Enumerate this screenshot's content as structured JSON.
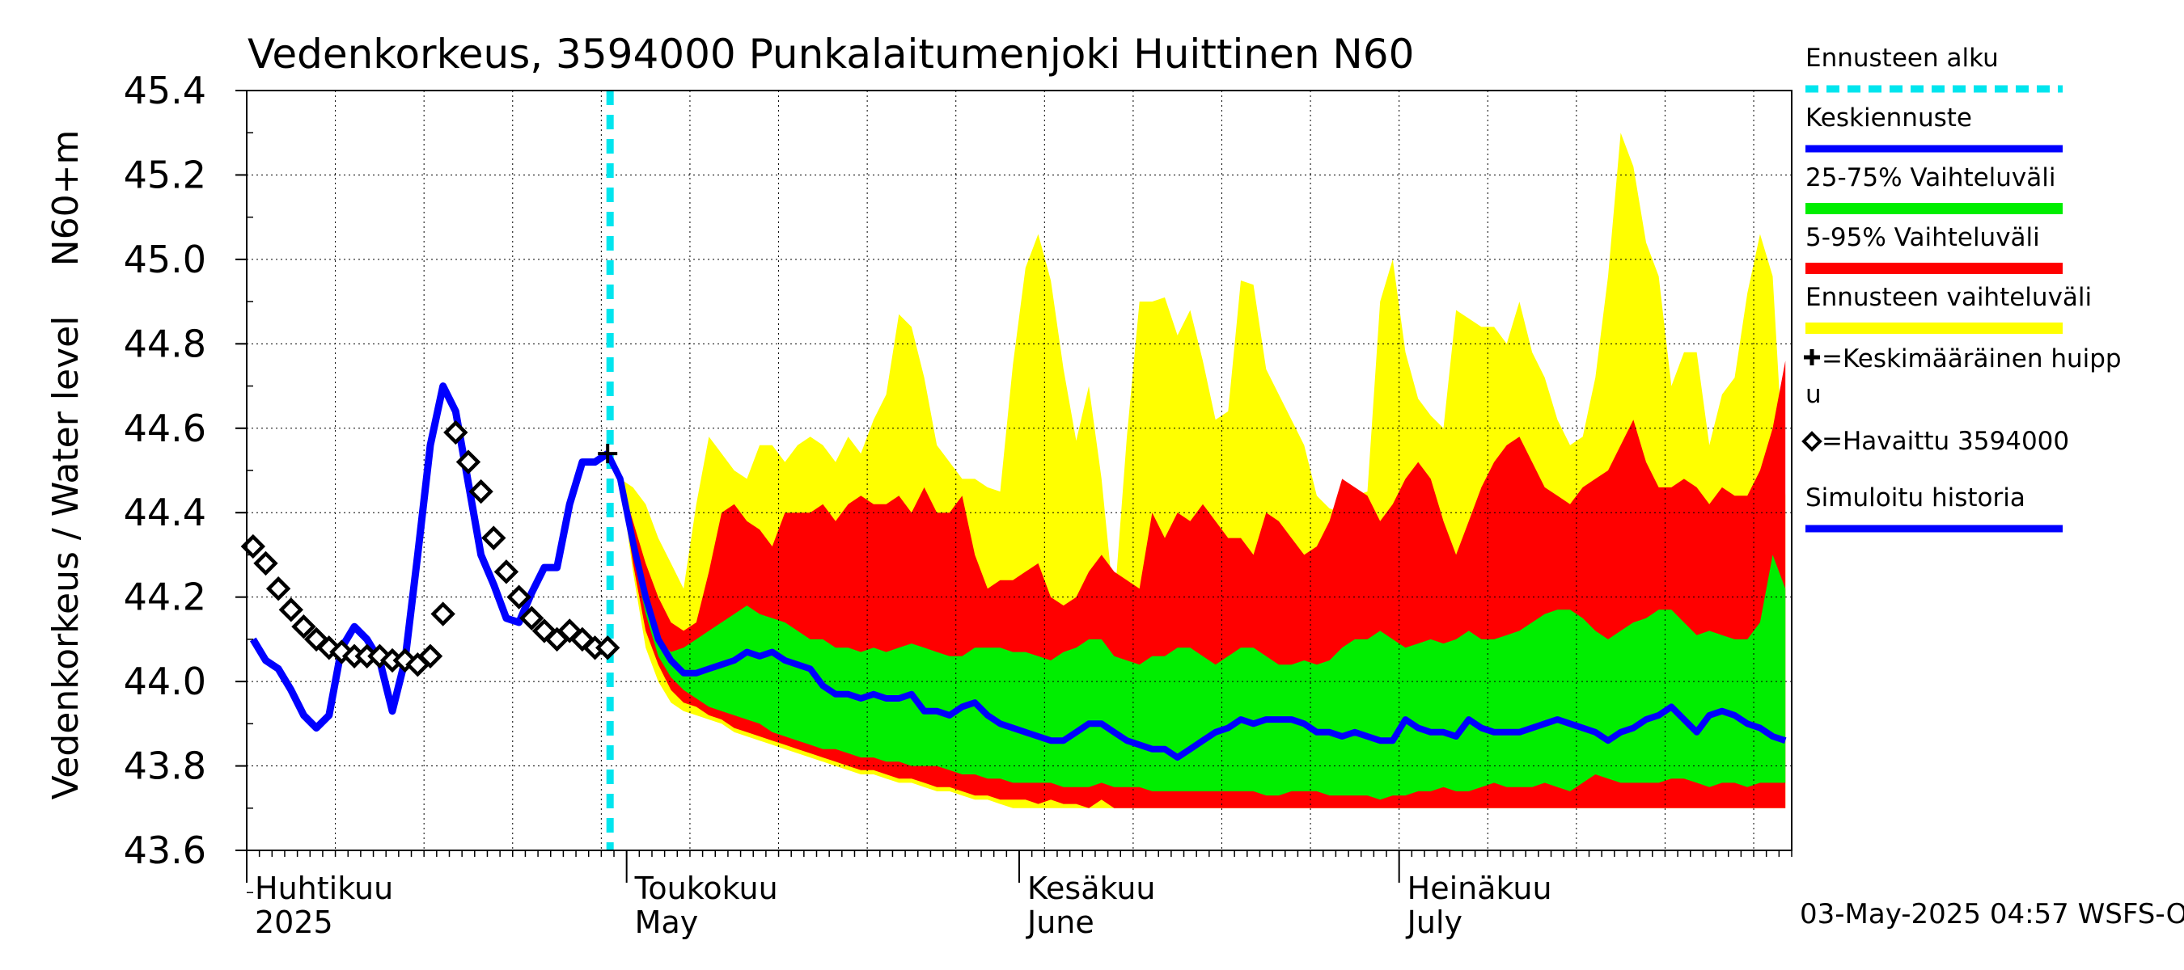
{
  "chart_data": {
    "type": "area",
    "title": "Vedenkorkeus, 3594000 Punkalaitumenjoki Huittinen N60",
    "ylabel_top": "N60+m",
    "ylabel": "Vedenkorkeus / Water level",
    "ylim": [
      43.6,
      45.4
    ],
    "yticks": [
      "43.6",
      "43.8",
      "44.0",
      "44.2",
      "44.4",
      "44.6",
      "44.8",
      "45.0",
      "45.2",
      "45.4"
    ],
    "x_range_days": [
      "2025-04-01",
      "2025-07-31"
    ],
    "grid": true,
    "months": [
      {
        "fi": "Huhtikuu",
        "year": "2025",
        "en": "",
        "start": "2025-04-01"
      },
      {
        "fi": "Toukokuu",
        "year": "",
        "en": "May",
        "start": "2025-05-01"
      },
      {
        "fi": "Kesäkuu",
        "year": "",
        "en": "June",
        "start": "2025-06-01"
      },
      {
        "fi": "Heinäkuu",
        "year": "",
        "en": "July",
        "start": "2025-07-01"
      }
    ],
    "forecast_start": "2025-04-29",
    "mean_peak": {
      "date": "2025-04-29",
      "value": 44.54
    },
    "legend": [
      {
        "label": "Ennusteen alku",
        "color": "#00e5ee",
        "style": "dashed"
      },
      {
        "label": "Keskiennuste",
        "color": "#0000ff",
        "style": "line"
      },
      {
        "label": "25-75% Vaihteluväli",
        "color": "#00ee00",
        "style": "band"
      },
      {
        "label": "5-95% Vaihteluväli",
        "color": "#ff0000",
        "style": "band"
      },
      {
        "label": "Ennusteen vaihteluväli",
        "color": "#ffff00",
        "style": "band"
      },
      {
        "label": "=Keskimääräinen huipp",
        "label2": "u",
        "color": "#000000",
        "style": "plus"
      },
      {
        "label": "=Havaittu 3594000",
        "color": "#000000",
        "style": "diamond"
      },
      {
        "label": "Simuloitu historia",
        "color": "#0000ff",
        "style": "line"
      }
    ],
    "footer": "03-May-2025 04:57 WSFS-O",
    "series": [
      {
        "name": "Simuloitu historia",
        "x": [
          "2025-04-01",
          "2025-04-02",
          "2025-04-03",
          "2025-04-04",
          "2025-04-05",
          "2025-04-06",
          "2025-04-07",
          "2025-04-08",
          "2025-04-09",
          "2025-04-10",
          "2025-04-11",
          "2025-04-12",
          "2025-04-13",
          "2025-04-14",
          "2025-04-15",
          "2025-04-16",
          "2025-04-17",
          "2025-04-18",
          "2025-04-19",
          "2025-04-20",
          "2025-04-21",
          "2025-04-22",
          "2025-04-23",
          "2025-04-24",
          "2025-04-25",
          "2025-04-26",
          "2025-04-27",
          "2025-04-28",
          "2025-04-29"
        ],
        "y": [
          44.1,
          44.05,
          44.03,
          43.98,
          43.92,
          43.89,
          43.92,
          44.08,
          44.13,
          44.1,
          44.05,
          43.93,
          44.05,
          44.3,
          44.56,
          44.7,
          44.64,
          44.47,
          44.3,
          44.23,
          44.15,
          44.14,
          44.21,
          44.27,
          44.27,
          44.42,
          44.52,
          44.52,
          44.54
        ]
      },
      {
        "name": "=Havaittu 3594000",
        "x": [
          "2025-04-01",
          "2025-04-02",
          "2025-04-03",
          "2025-04-04",
          "2025-04-05",
          "2025-04-06",
          "2025-04-07",
          "2025-04-08",
          "2025-04-09",
          "2025-04-10",
          "2025-04-11",
          "2025-04-12",
          "2025-04-13",
          "2025-04-14",
          "2025-04-15",
          "2025-04-16",
          "2025-04-17",
          "2025-04-18",
          "2025-04-19",
          "2025-04-20",
          "2025-04-21",
          "2025-04-22",
          "2025-04-23",
          "2025-04-24",
          "2025-04-25",
          "2025-04-26",
          "2025-04-27",
          "2025-04-28",
          "2025-04-29"
        ],
        "y": [
          44.32,
          44.28,
          44.22,
          44.17,
          44.13,
          44.1,
          44.08,
          44.07,
          44.06,
          44.06,
          44.06,
          44.05,
          44.05,
          44.04,
          44.06,
          44.16,
          44.59,
          44.52,
          44.45,
          44.34,
          44.26,
          44.2,
          44.15,
          44.12,
          44.1,
          44.12,
          44.1,
          44.08,
          44.08
        ]
      },
      {
        "name": "Keskiennuste",
        "x": [
          "2025-04-29",
          "2025-04-30",
          "2025-05-01",
          "2025-05-02",
          "2025-05-03",
          "2025-05-04",
          "2025-05-05",
          "2025-05-06",
          "2025-05-07",
          "2025-05-08",
          "2025-05-09",
          "2025-05-10",
          "2025-05-11",
          "2025-05-12",
          "2025-05-13",
          "2025-05-14",
          "2025-05-15",
          "2025-05-16",
          "2025-05-17",
          "2025-05-18",
          "2025-05-19",
          "2025-05-20",
          "2025-05-21",
          "2025-05-22",
          "2025-05-23",
          "2025-05-24",
          "2025-05-25",
          "2025-05-26",
          "2025-05-27",
          "2025-05-28",
          "2025-05-29",
          "2025-05-30",
          "2025-05-31",
          "2025-06-01",
          "2025-06-02",
          "2025-06-03",
          "2025-06-04",
          "2025-06-05",
          "2025-06-06",
          "2025-06-07",
          "2025-06-08",
          "2025-06-09",
          "2025-06-10",
          "2025-06-11",
          "2025-06-12",
          "2025-06-13",
          "2025-06-14",
          "2025-06-15",
          "2025-06-16",
          "2025-06-17",
          "2025-06-18",
          "2025-06-19",
          "2025-06-20",
          "2025-06-21",
          "2025-06-22",
          "2025-06-23",
          "2025-06-24",
          "2025-06-25",
          "2025-06-26",
          "2025-06-27",
          "2025-06-28",
          "2025-06-29",
          "2025-06-30",
          "2025-07-01",
          "2025-07-02",
          "2025-07-03",
          "2025-07-04",
          "2025-07-05",
          "2025-07-06",
          "2025-07-07",
          "2025-07-08",
          "2025-07-09",
          "2025-07-10",
          "2025-07-11",
          "2025-07-12",
          "2025-07-13",
          "2025-07-14",
          "2025-07-15",
          "2025-07-16",
          "2025-07-17",
          "2025-07-18",
          "2025-07-19",
          "2025-07-20",
          "2025-07-21",
          "2025-07-22",
          "2025-07-23",
          "2025-07-24",
          "2025-07-25",
          "2025-07-26",
          "2025-07-27",
          "2025-07-28",
          "2025-07-29",
          "2025-07-30",
          "2025-07-31"
        ],
        "y": [
          44.54,
          44.48,
          44.33,
          44.2,
          44.1,
          44.05,
          44.02,
          44.02,
          44.03,
          44.04,
          44.05,
          44.07,
          44.06,
          44.07,
          44.05,
          44.04,
          44.03,
          43.99,
          43.97,
          43.97,
          43.96,
          43.97,
          43.96,
          43.96,
          43.97,
          43.93,
          43.93,
          43.92,
          43.94,
          43.95,
          43.92,
          43.9,
          43.89,
          43.88,
          43.87,
          43.86,
          43.86,
          43.88,
          43.9,
          43.9,
          43.88,
          43.86,
          43.85,
          43.84,
          43.84,
          43.82,
          43.84,
          43.86,
          43.88,
          43.89,
          43.91,
          43.9,
          43.91,
          43.91,
          43.91,
          43.9,
          43.88,
          43.88,
          43.87,
          43.88,
          43.87,
          43.86,
          43.86,
          43.91,
          43.89,
          43.88,
          43.88,
          43.87,
          43.91,
          43.89,
          43.88,
          43.88,
          43.88,
          43.89,
          43.9,
          43.91,
          43.9,
          43.89,
          43.88,
          43.86,
          43.88,
          43.89,
          43.91,
          43.92,
          43.94,
          43.91,
          43.88,
          43.92,
          43.93,
          43.92,
          43.9,
          43.89,
          43.87,
          43.86
        ]
      }
    ],
    "bands": {
      "x": [
        "2025-04-29",
        "2025-04-30",
        "2025-05-01",
        "2025-05-02",
        "2025-05-03",
        "2025-05-04",
        "2025-05-05",
        "2025-05-06",
        "2025-05-07",
        "2025-05-08",
        "2025-05-09",
        "2025-05-10",
        "2025-05-11",
        "2025-05-12",
        "2025-05-13",
        "2025-05-14",
        "2025-05-15",
        "2025-05-16",
        "2025-05-17",
        "2025-05-18",
        "2025-05-19",
        "2025-05-20",
        "2025-05-21",
        "2025-05-22",
        "2025-05-23",
        "2025-05-24",
        "2025-05-25",
        "2025-05-26",
        "2025-05-27",
        "2025-05-28",
        "2025-05-29",
        "2025-05-30",
        "2025-05-31",
        "2025-06-01",
        "2025-06-02",
        "2025-06-03",
        "2025-06-04",
        "2025-06-05",
        "2025-06-06",
        "2025-06-07",
        "2025-06-08",
        "2025-06-09",
        "2025-06-10",
        "2025-06-11",
        "2025-06-12",
        "2025-06-13",
        "2025-06-14",
        "2025-06-15",
        "2025-06-16",
        "2025-06-17",
        "2025-06-18",
        "2025-06-19",
        "2025-06-20",
        "2025-06-21",
        "2025-06-22",
        "2025-06-23",
        "2025-06-24",
        "2025-06-25",
        "2025-06-26",
        "2025-06-27",
        "2025-06-28",
        "2025-06-29",
        "2025-06-30",
        "2025-07-01",
        "2025-07-02",
        "2025-07-03",
        "2025-07-04",
        "2025-07-05",
        "2025-07-06",
        "2025-07-07",
        "2025-07-08",
        "2025-07-09",
        "2025-07-10",
        "2025-07-11",
        "2025-07-12",
        "2025-07-13",
        "2025-07-14",
        "2025-07-15",
        "2025-07-16",
        "2025-07-17",
        "2025-07-18",
        "2025-07-19",
        "2025-07-20",
        "2025-07-21",
        "2025-07-22",
        "2025-07-23",
        "2025-07-24",
        "2025-07-25",
        "2025-07-26",
        "2025-07-27",
        "2025-07-28",
        "2025-07-29",
        "2025-07-30",
        "2025-07-31"
      ],
      "ennusteen_vaihteluvali_max": [
        44.54,
        44.48,
        44.46,
        44.42,
        44.34,
        44.28,
        44.22,
        44.42,
        44.58,
        44.54,
        44.5,
        44.48,
        44.56,
        44.56,
        44.52,
        44.56,
        44.58,
        44.56,
        44.52,
        44.58,
        44.54,
        44.62,
        44.68,
        44.87,
        44.84,
        44.72,
        44.56,
        44.52,
        44.48,
        44.48,
        44.46,
        44.45,
        44.75,
        44.98,
        45.06,
        44.95,
        44.74,
        44.57,
        44.7,
        44.48,
        44.18,
        44.58,
        44.9,
        44.9,
        44.91,
        44.82,
        44.88,
        44.76,
        44.62,
        44.64,
        44.95,
        44.94,
        44.74,
        44.68,
        44.62,
        44.56,
        44.44,
        44.41,
        44.4,
        44.44,
        44.45,
        44.9,
        45.0,
        44.78,
        44.67,
        44.63,
        44.6,
        44.88,
        44.86,
        44.84,
        44.84,
        44.8,
        44.9,
        44.78,
        44.72,
        44.62,
        44.56,
        44.58,
        44.72,
        44.96,
        45.3,
        45.22,
        45.04,
        44.96,
        44.7,
        44.78,
        44.78,
        44.56,
        44.68,
        44.72,
        44.92,
        45.06,
        44.96,
        44.44
      ],
      "p95": [
        44.54,
        44.48,
        44.38,
        44.28,
        44.2,
        44.14,
        44.12,
        44.14,
        44.26,
        44.4,
        44.42,
        44.38,
        44.36,
        44.32,
        44.4,
        44.4,
        44.4,
        44.42,
        44.38,
        44.42,
        44.44,
        44.42,
        44.42,
        44.44,
        44.4,
        44.46,
        44.4,
        44.4,
        44.44,
        44.3,
        44.22,
        44.24,
        44.24,
        44.26,
        44.28,
        44.2,
        44.18,
        44.2,
        44.26,
        44.3,
        44.26,
        44.24,
        44.22,
        44.4,
        44.34,
        44.4,
        44.38,
        44.42,
        44.38,
        44.34,
        44.34,
        44.3,
        44.4,
        44.38,
        44.34,
        44.3,
        44.32,
        44.38,
        44.48,
        44.46,
        44.44,
        44.38,
        44.42,
        44.48,
        44.52,
        44.48,
        44.38,
        44.3,
        44.38,
        44.46,
        44.52,
        44.56,
        44.58,
        44.52,
        44.46,
        44.44,
        44.42,
        44.46,
        44.48,
        44.5,
        44.56,
        44.62,
        44.52,
        44.46,
        44.46,
        44.48,
        44.46,
        44.42,
        44.46,
        44.44,
        44.44,
        44.5,
        44.6,
        44.76
      ],
      "p75": [
        44.54,
        44.48,
        44.32,
        44.2,
        44.1,
        44.07,
        44.08,
        44.1,
        44.12,
        44.14,
        44.16,
        44.18,
        44.16,
        44.15,
        44.14,
        44.12,
        44.1,
        44.1,
        44.08,
        44.08,
        44.07,
        44.08,
        44.07,
        44.08,
        44.09,
        44.08,
        44.07,
        44.06,
        44.06,
        44.08,
        44.08,
        44.08,
        44.07,
        44.07,
        44.06,
        44.05,
        44.07,
        44.08,
        44.1,
        44.1,
        44.06,
        44.05,
        44.04,
        44.06,
        44.06,
        44.08,
        44.08,
        44.06,
        44.04,
        44.06,
        44.08,
        44.08,
        44.06,
        44.04,
        44.04,
        44.05,
        44.04,
        44.05,
        44.08,
        44.1,
        44.1,
        44.12,
        44.1,
        44.08,
        44.09,
        44.1,
        44.09,
        44.1,
        44.12,
        44.1,
        44.1,
        44.11,
        44.12,
        44.14,
        44.16,
        44.17,
        44.17,
        44.15,
        44.12,
        44.1,
        44.12,
        44.14,
        44.15,
        44.17,
        44.17,
        44.14,
        44.11,
        44.12,
        44.11,
        44.1,
        44.1,
        44.14,
        44.3,
        44.22
      ],
      "p25": [
        44.54,
        44.48,
        44.3,
        44.16,
        44.06,
        44.01,
        43.98,
        43.96,
        43.94,
        43.93,
        43.92,
        43.91,
        43.9,
        43.88,
        43.87,
        43.86,
        43.85,
        43.84,
        43.84,
        43.83,
        43.82,
        43.82,
        43.81,
        43.81,
        43.8,
        43.8,
        43.8,
        43.79,
        43.78,
        43.78,
        43.77,
        43.77,
        43.76,
        43.76,
        43.76,
        43.76,
        43.75,
        43.75,
        43.75,
        43.76,
        43.75,
        43.75,
        43.75,
        43.74,
        43.74,
        43.74,
        43.74,
        43.74,
        43.74,
        43.74,
        43.74,
        43.74,
        43.73,
        43.73,
        43.74,
        43.74,
        43.74,
        43.73,
        43.73,
        43.73,
        43.73,
        43.72,
        43.73,
        43.73,
        43.74,
        43.74,
        43.75,
        43.74,
        43.74,
        43.75,
        43.76,
        43.75,
        43.75,
        43.75,
        43.76,
        43.75,
        43.74,
        43.76,
        43.78,
        43.77,
        43.76,
        43.76,
        43.76,
        43.76,
        43.77,
        43.77,
        43.76,
        43.75,
        43.76,
        43.76,
        43.75,
        43.76,
        43.76,
        43.76
      ],
      "p5": [
        44.54,
        44.48,
        44.28,
        44.12,
        44.04,
        43.98,
        43.95,
        43.94,
        43.92,
        43.91,
        43.89,
        43.88,
        43.87,
        43.86,
        43.85,
        43.84,
        43.83,
        43.82,
        43.81,
        43.8,
        43.79,
        43.79,
        43.78,
        43.77,
        43.77,
        43.76,
        43.75,
        43.75,
        43.74,
        43.73,
        43.73,
        43.72,
        43.72,
        43.72,
        43.71,
        43.72,
        43.71,
        43.71,
        43.7,
        43.72,
        43.7,
        43.7,
        43.7,
        43.7,
        43.7,
        43.7,
        43.7,
        43.7,
        43.7,
        43.7,
        43.7,
        43.7,
        43.7,
        43.7,
        43.7,
        43.7,
        43.7,
        43.7,
        43.7,
        43.7,
        43.7,
        43.7,
        43.7,
        43.7,
        43.7,
        43.7,
        43.7,
        43.7,
        43.7,
        43.7,
        43.7,
        43.7,
        43.7,
        43.7,
        43.7,
        43.7,
        43.7,
        43.7,
        43.7,
        43.7,
        43.7,
        43.7,
        43.7,
        43.7,
        43.7,
        43.7,
        43.7,
        43.7,
        43.7,
        43.7,
        43.7,
        43.7,
        43.7,
        43.7
      ],
      "ennusteen_vaihteluvali_min": [
        44.54,
        44.48,
        44.26,
        44.08,
        44.0,
        43.95,
        43.93,
        43.92,
        43.91,
        43.9,
        43.88,
        43.87,
        43.86,
        43.85,
        43.84,
        43.83,
        43.82,
        43.81,
        43.8,
        43.79,
        43.78,
        43.78,
        43.77,
        43.76,
        43.76,
        43.75,
        43.74,
        43.74,
        43.73,
        43.72,
        43.72,
        43.71,
        43.7,
        43.7,
        43.7,
        43.7,
        43.7,
        43.7,
        43.7,
        43.7,
        43.7,
        43.7,
        43.7,
        43.7,
        43.7,
        43.7,
        43.7,
        43.7,
        43.7,
        43.7,
        43.7,
        43.7,
        43.7,
        43.7,
        43.7,
        43.7,
        43.7,
        43.7,
        43.7,
        43.7,
        43.7,
        43.7,
        43.7,
        43.7,
        43.7,
        43.7,
        43.7,
        43.7,
        43.7,
        43.7,
        43.7,
        43.7,
        43.7,
        43.7,
        43.7,
        43.7,
        43.7,
        43.7,
        43.7,
        43.7,
        43.7,
        43.7,
        43.7,
        43.7,
        43.7,
        43.7,
        43.7,
        43.7,
        43.7,
        43.7,
        43.7,
        43.7,
        43.7,
        43.7
      ]
    }
  }
}
